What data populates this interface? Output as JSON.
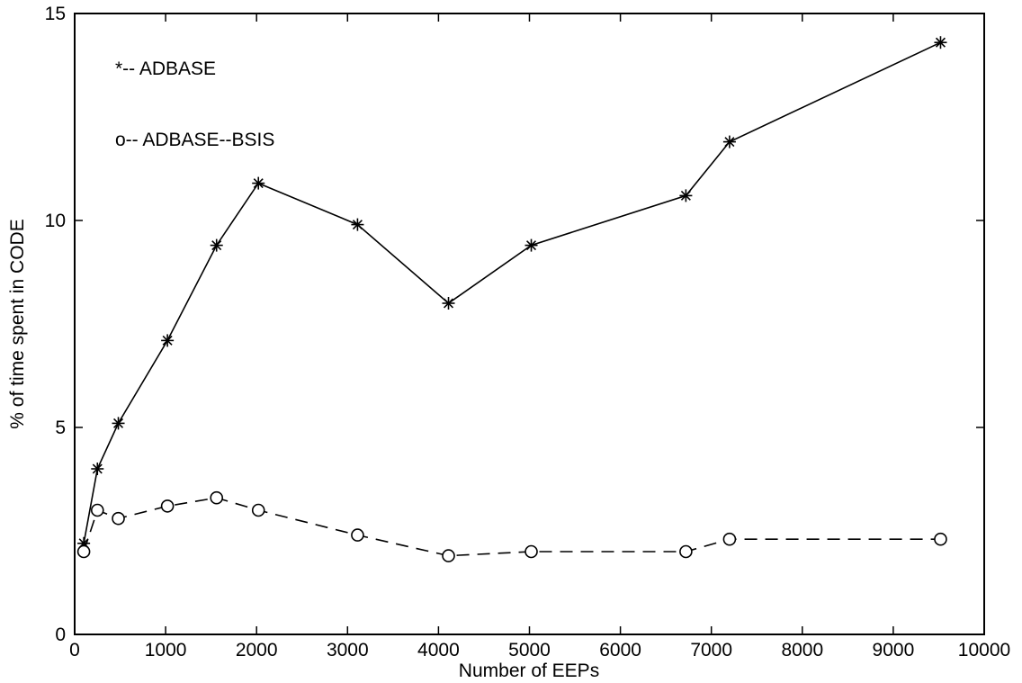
{
  "chart_data": {
    "type": "line",
    "title": "",
    "xlabel": "Number of EEPs",
    "ylabel": "% of time spent in CODE",
    "xlim": [
      0,
      10000
    ],
    "ylim": [
      0,
      15
    ],
    "xticks": [
      0,
      1000,
      2000,
      3000,
      4000,
      5000,
      6000,
      7000,
      8000,
      9000,
      10000
    ],
    "yticks": [
      0,
      5,
      10,
      15
    ],
    "grid": false,
    "legend_position": "top-left",
    "series": [
      {
        "name": "ADBASE",
        "legend_label": "*-- ADBASE",
        "marker": "star",
        "line_style": "solid",
        "color": "#000000",
        "x": [
          100,
          250,
          480,
          1020,
          1560,
          2020,
          3110,
          4110,
          5020,
          6720,
          7200,
          9520
        ],
        "y": [
          2.2,
          4.0,
          5.1,
          7.1,
          9.4,
          10.9,
          9.9,
          8.0,
          9.4,
          10.6,
          11.9,
          14.3
        ]
      },
      {
        "name": "ADBASE--BSIS",
        "legend_label": "o-- ADBASE--BSIS",
        "marker": "circle",
        "line_style": "dashed",
        "color": "#000000",
        "x": [
          100,
          250,
          480,
          1020,
          1560,
          2020,
          3110,
          4110,
          5020,
          6720,
          7200,
          9520
        ],
        "y": [
          2.0,
          3.0,
          2.8,
          3.1,
          3.3,
          3.0,
          2.4,
          1.9,
          2.0,
          2.0,
          2.3,
          2.3
        ]
      }
    ]
  }
}
